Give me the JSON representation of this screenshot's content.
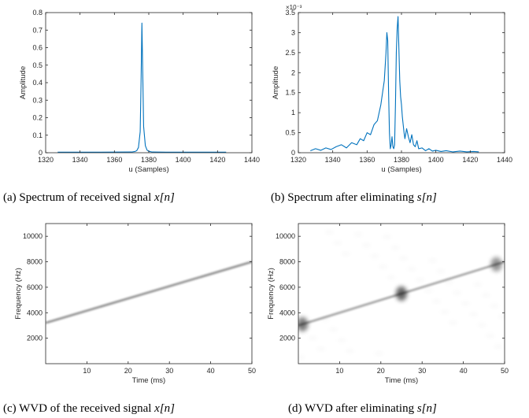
{
  "panels": [
    {
      "id": "a",
      "caption": "(a) Spectrum of received signal ",
      "caption_math": "x[n]",
      "xlabel": "u (Samples)",
      "ylabel": "Amplitude",
      "y_exponent": ""
    },
    {
      "id": "b",
      "caption": "(b) Spectrum after eliminating ",
      "caption_math": "s[n]",
      "xlabel": "u (Samples)",
      "ylabel": "Amplitude",
      "y_exponent": "×10⁻³"
    },
    {
      "id": "c",
      "caption": "(c) WVD of the received signal ",
      "caption_math": "x[n]",
      "xlabel": "Time (ms)",
      "ylabel": "Frequency (Hz)",
      "y_exponent": ""
    },
    {
      "id": "d",
      "caption": "(d) WVD after eliminating ",
      "caption_math": "s[n]",
      "xlabel": "Time (ms)",
      "ylabel": "Frequency (Hz)",
      "y_exponent": ""
    }
  ],
  "chart_data": [
    {
      "type": "line",
      "xlabel": "u (Samples)",
      "ylabel": "Amplitude",
      "xlim": [
        1320,
        1440
      ],
      "ylim": [
        0,
        0.8
      ],
      "xticks": [
        1320,
        1340,
        1360,
        1380,
        1400,
        1420,
        1440
      ],
      "yticks": [
        0,
        0.1,
        0.2,
        0.3,
        0.4,
        0.5,
        0.6,
        0.7,
        0.8
      ],
      "ytick_labels": [
        "0",
        "0.1",
        "0.2",
        "0.3",
        "0.4",
        "0.5",
        "0.6",
        "0.7",
        "0.8"
      ],
      "color": "#0072BD",
      "series": [
        {
          "x": [
            1327,
            1350,
            1370,
            1372,
            1373,
            1374,
            1375,
            1375.5,
            1376,
            1376.5,
            1377,
            1378,
            1379,
            1380,
            1382,
            1390,
            1410,
            1425
          ],
          "values": [
            0.003,
            0.003,
            0.004,
            0.007,
            0.012,
            0.03,
            0.12,
            0.4,
            0.74,
            0.45,
            0.15,
            0.04,
            0.015,
            0.008,
            0.004,
            0.003,
            0.003,
            0.003
          ]
        }
      ]
    },
    {
      "type": "line",
      "xlabel": "u (Samples)",
      "ylabel": "Amplitude",
      "xlim": [
        1320,
        1440
      ],
      "ylim": [
        0,
        0.0035
      ],
      "xticks": [
        1320,
        1340,
        1360,
        1380,
        1400,
        1420,
        1440
      ],
      "yticks": [
        0,
        0.0005,
        0.001,
        0.0015,
        0.002,
        0.0025,
        0.003,
        0.0035
      ],
      "ytick_labels": [
        "0",
        "0.5",
        "1",
        "1.5",
        "2",
        "2.5",
        "3",
        "3.5"
      ],
      "y_exponent": -3,
      "color": "#0072BD",
      "series": [
        {
          "x": [
            1327,
            1330,
            1333,
            1336,
            1339,
            1342,
            1345,
            1348,
            1351,
            1354,
            1356,
            1358,
            1360,
            1362,
            1364,
            1366,
            1367,
            1368,
            1369,
            1370,
            1371,
            1371.5,
            1372,
            1372.5,
            1373,
            1373.5,
            1374,
            1374.5,
            1375,
            1375.5,
            1376,
            1376.5,
            1377,
            1377.5,
            1378,
            1378.5,
            1379,
            1379.5,
            1380,
            1380.5,
            1381,
            1381.5,
            1382,
            1383,
            1384,
            1385,
            1386,
            1387,
            1388,
            1389,
            1390,
            1392,
            1394,
            1396,
            1398,
            1400,
            1403,
            1406,
            1410,
            1414,
            1418,
            1422,
            1425
          ],
          "values": [
            5e-05,
            0.0001,
            6e-05,
            0.00012,
            8e-05,
            0.00015,
            0.0002,
            0.00012,
            0.00025,
            0.0002,
            0.00035,
            0.0003,
            0.0005,
            0.00045,
            0.0007,
            0.0008,
            0.001,
            0.0012,
            0.0015,
            0.0018,
            0.0025,
            0.003,
            0.0028,
            0.0015,
            0.0005,
            0.0001,
            0.0002,
            0.0004,
            0.00015,
            0.0001,
            0.0002,
            0.0012,
            0.0025,
            0.0031,
            0.0034,
            0.0026,
            0.0018,
            0.0014,
            0.0012,
            0.0009,
            0.0007,
            0.0005,
            0.00035,
            0.0006,
            0.0004,
            0.00025,
            0.00045,
            0.0002,
            0.00015,
            0.0003,
            0.0001,
            0.00012,
            5e-05,
            0.0001,
            4e-05,
            6e-05,
            3e-05,
            5e-05,
            2e-05,
            4e-05,
            2e-05,
            3e-05,
            2e-05
          ]
        }
      ]
    },
    {
      "type": "heatmap",
      "xlabel": "Time (ms)",
      "ylabel": "Frequency (Hz)",
      "xlim": [
        0,
        50
      ],
      "ylim": [
        0,
        11000
      ],
      "xticks": [
        10,
        20,
        30,
        40,
        50
      ],
      "yticks": [
        2000,
        4000,
        6000,
        8000,
        10000
      ],
      "colormap": "gray-inverted",
      "ridge": {
        "t_start": 0,
        "f_start": 3200,
        "t_end": 50,
        "f_end": 8000,
        "intensity": 0.55
      },
      "hotspots": []
    },
    {
      "type": "heatmap",
      "xlabel": "Time (ms)",
      "ylabel": "Frequency (Hz)",
      "xlim": [
        0,
        50
      ],
      "ylim": [
        0,
        11000
      ],
      "xticks": [
        10,
        20,
        30,
        40,
        50
      ],
      "yticks": [
        2000,
        4000,
        6000,
        8000,
        10000
      ],
      "colormap": "gray-inverted",
      "ridge": {
        "t_start": 0,
        "f_start": 3000,
        "t_end": 50,
        "f_end": 8000,
        "intensity": 0.45
      },
      "hotspots": [
        {
          "t": 1,
          "f": 3100,
          "intensity": 0.85
        },
        {
          "t": 25,
          "f": 5500,
          "intensity": 1.0
        },
        {
          "t": 48,
          "f": 7800,
          "intensity": 0.7
        }
      ]
    }
  ]
}
